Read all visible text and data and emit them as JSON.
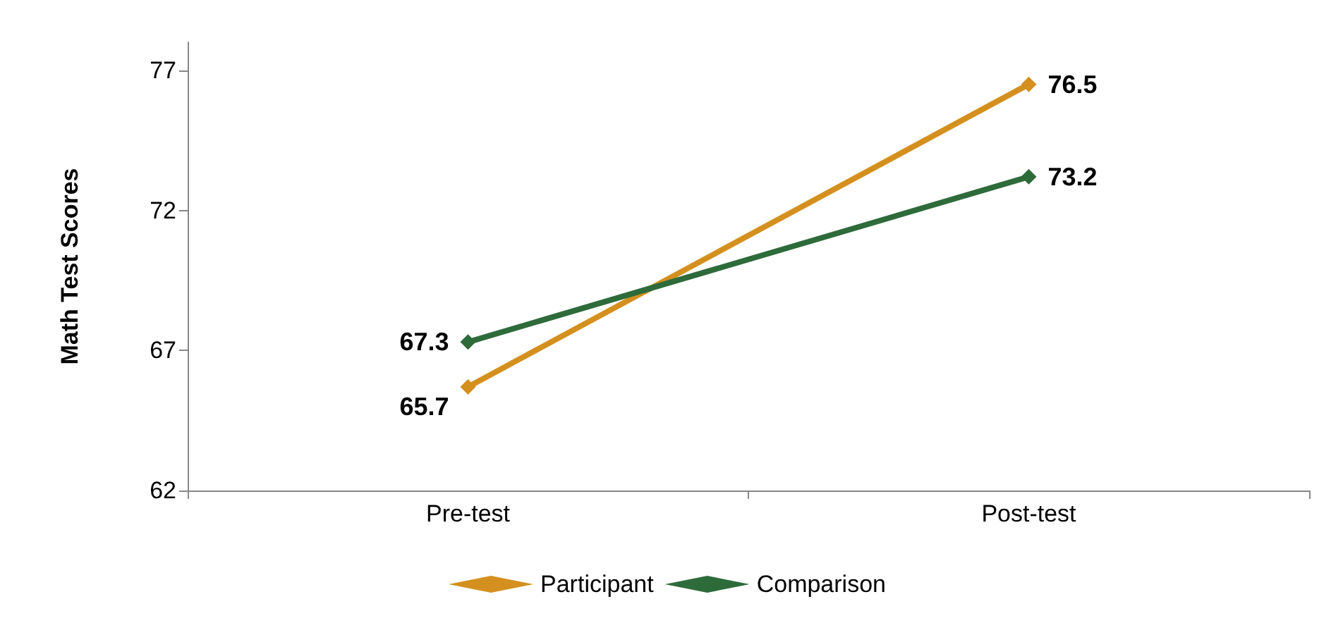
{
  "chart_data": {
    "type": "line",
    "ylabel": "Math Test Scores",
    "categories": [
      "Pre-test",
      "Post-test"
    ],
    "series": [
      {
        "name": "Participant",
        "color": "#d4901e",
        "values": [
          65.7,
          76.5
        ]
      },
      {
        "name": "Comparison",
        "color": "#2e6b3a",
        "values": [
          67.3,
          73.2
        ]
      }
    ],
    "ylim": [
      62,
      78
    ],
    "yticks": [
      62,
      67,
      72,
      77
    ],
    "grid": false,
    "legend": "bottom",
    "marker": "diamond",
    "line_style": "solid",
    "data_labels": true
  }
}
